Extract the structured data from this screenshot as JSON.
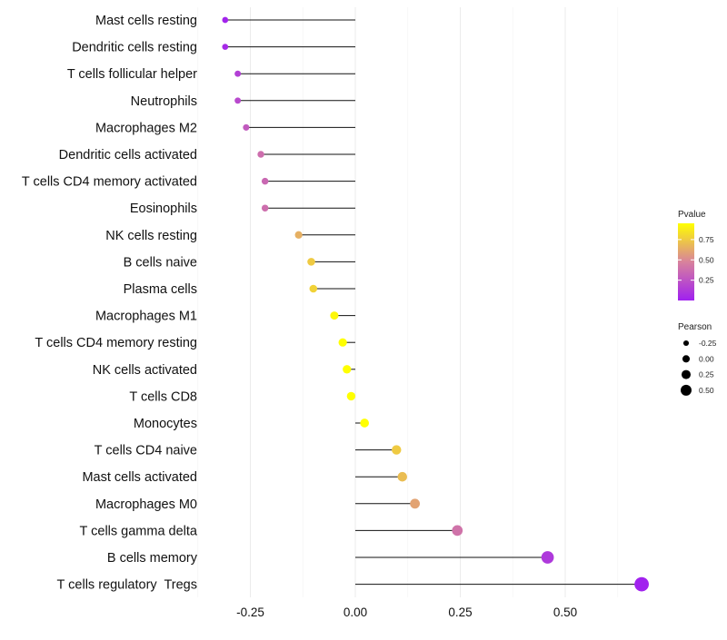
{
  "chart_data": {
    "type": "lollipop",
    "title": "",
    "xlabel": "",
    "ylabel": "",
    "xlim": [
      -0.33,
      0.72
    ],
    "x_ticks": [
      -0.25,
      0.0,
      0.25,
      0.5
    ],
    "x_tick_labels": [
      "-0.25",
      "0.00",
      "0.25",
      "0.50"
    ],
    "grid": true,
    "categories": [
      "Mast cells resting",
      "Dendritic cells resting",
      "T cells follicular helper",
      "Neutrophils",
      "Macrophages M2",
      "Dendritic cells activated",
      "T cells CD4 memory activated",
      "Eosinophils",
      "NK cells resting",
      "B cells naive",
      "Plasma cells",
      "Macrophages M1",
      "T cells CD4 memory resting",
      "NK cells activated",
      "T cells CD8",
      "Monocytes",
      "T cells CD4 naive",
      "Mast cells activated",
      "Macrophages M0",
      "T cells gamma delta",
      "B cells memory",
      "T cells regulatory  Tregs"
    ],
    "pearson": [
      -0.31,
      -0.31,
      -0.28,
      -0.28,
      -0.26,
      -0.225,
      -0.215,
      -0.215,
      -0.135,
      -0.105,
      -0.1,
      -0.05,
      -0.03,
      -0.02,
      -0.01,
      0.022,
      0.098,
      0.112,
      0.142,
      0.243,
      0.458,
      0.682
    ],
    "pvalue": [
      0.02,
      0.05,
      0.15,
      0.2,
      0.28,
      0.38,
      0.35,
      0.38,
      0.65,
      0.75,
      0.78,
      0.92,
      0.95,
      0.96,
      0.99,
      0.95,
      0.75,
      0.7,
      0.6,
      0.4,
      0.12,
      0.01
    ],
    "legend_color": {
      "title": "Pvalue",
      "ticks": [
        0.25,
        0.5,
        0.75
      ],
      "tick_labels": [
        "0.25",
        "0.50",
        "0.75"
      ],
      "range": [
        0.0,
        0.95
      ],
      "color_low": "#a020f0",
      "color_mid": "#d8829c",
      "color_high": "#ffff00"
    },
    "legend_size": {
      "title": "Pearson",
      "values": [
        -0.25,
        0.0,
        0.25,
        0.5
      ],
      "labels": [
        "-0.25",
        "0.00",
        "0.25",
        "0.50"
      ]
    }
  }
}
